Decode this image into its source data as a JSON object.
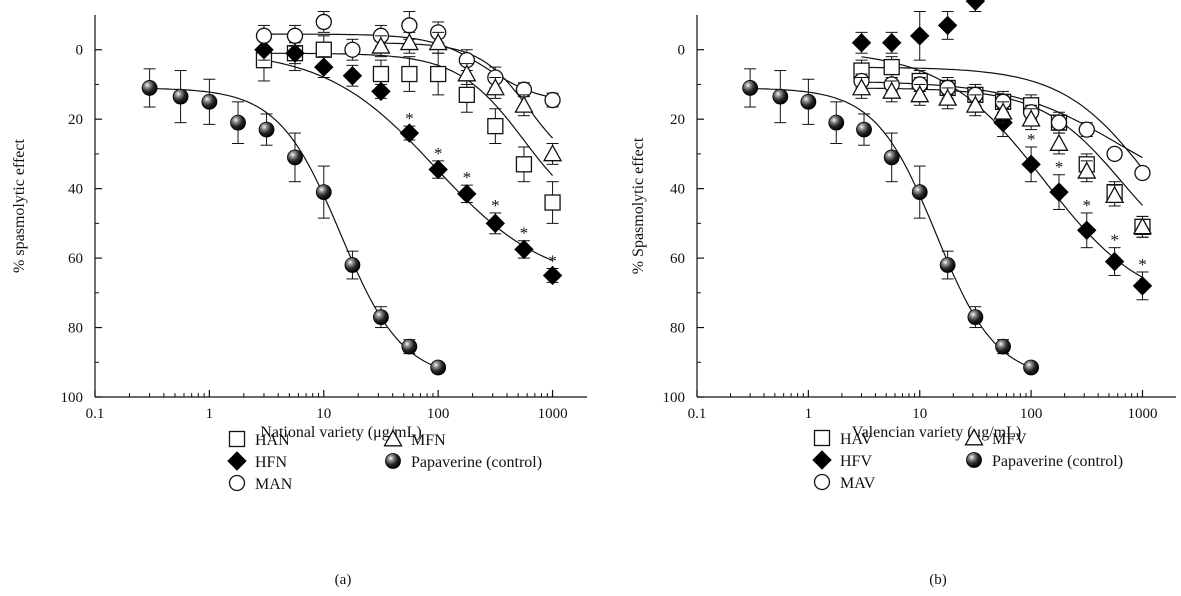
{
  "chart_data": [
    {
      "type": "scatter",
      "panel_label": "(a)",
      "xlabel": "National variety (μg/mL)",
      "ylabel": "% spasmolytic effect",
      "x_scale": "log",
      "xlim": [
        0.1,
        2000
      ],
      "ylim": [
        100,
        -10
      ],
      "y_inverted": true,
      "xticks": [
        0.1,
        1,
        10,
        100,
        1000
      ],
      "xtick_labels": [
        "0.1",
        "1",
        "10",
        "100",
        "1000"
      ],
      "yticks": [
        0,
        20,
        40,
        60,
        80,
        100
      ],
      "ytick_labels": [
        "0",
        "20",
        "40",
        "60",
        "80",
        "100"
      ],
      "grid": false,
      "legend_position": "bottom",
      "series": [
        {
          "name": "HAN",
          "marker": "square-open",
          "x": [
            3,
            5.6,
            10,
            31.6,
            56,
            100,
            178,
            316,
            562,
            1000
          ],
          "y": [
            3,
            1,
            0,
            7,
            7,
            7,
            13,
            22,
            33,
            44
          ],
          "err": [
            6,
            5,
            4,
            4,
            5,
            6,
            5,
            5,
            5,
            6
          ],
          "fit": {
            "bottom": 1,
            "top": 51,
            "ec50": 560,
            "hill": 1.5
          }
        },
        {
          "name": "HFN",
          "marker": "diamond-filled",
          "x": [
            3,
            5.6,
            10,
            17.8,
            31.6,
            56,
            100,
            178,
            316,
            562,
            1000
          ],
          "y": [
            0,
            1,
            5,
            7.5,
            12,
            24,
            34.5,
            41.5,
            50,
            57.5,
            65
          ],
          "err": [
            3,
            3,
            3,
            3,
            2,
            2,
            2.5,
            2.5,
            3,
            2.5,
            2
          ],
          "significant": [
            false,
            false,
            false,
            false,
            false,
            true,
            true,
            true,
            true,
            true,
            true
          ],
          "fit": {
            "bottom": 0,
            "top": 68,
            "ec50": 95,
            "hill": 0.9
          }
        },
        {
          "name": "MAN",
          "marker": "circle-open",
          "x": [
            3,
            5.6,
            10,
            17.8,
            31.6,
            56,
            100,
            178,
            316,
            562,
            1000
          ],
          "y": [
            -4,
            -4,
            -8,
            0,
            -4,
            -7,
            -5,
            3,
            8,
            11.5,
            14.5
          ],
          "err": [
            3,
            3,
            3,
            3,
            3,
            4,
            3,
            3,
            3,
            2,
            2
          ],
          "fit": {
            "bottom": -4.5,
            "top": 15.5,
            "ec50": 270,
            "hill": 1.8
          }
        },
        {
          "name": "MFN",
          "marker": "triangle-open",
          "x": [
            31.6,
            56,
            100,
            178,
            316,
            562,
            1000
          ],
          "y": [
            -1,
            -2,
            -2,
            7,
            11,
            16,
            30
          ],
          "err": [
            3,
            3,
            3,
            3,
            3,
            3,
            3
          ],
          "fit": {
            "bottom": -2,
            "top": 36,
            "ec50": 620,
            "hill": 2.0
          }
        },
        {
          "name": "Papaverine (control)",
          "marker": "sphere-filled",
          "x": [
            0.3,
            0.56,
            1,
            1.78,
            3.16,
            5.6,
            10,
            17.8,
            31.6,
            56,
            100
          ],
          "y": [
            11,
            13.5,
            15,
            21,
            23,
            31,
            41,
            62,
            77,
            85.5,
            91.5
          ],
          "err": [
            5.5,
            7.5,
            6.5,
            6,
            4.5,
            7,
            7.5,
            4,
            3,
            2,
            1
          ],
          "fit": {
            "bottom": 11,
            "top": 95,
            "ec50": 14,
            "hill": 1.6
          }
        }
      ]
    },
    {
      "type": "scatter",
      "panel_label": "(b)",
      "xlabel": "Valencian variety (μg/mL)",
      "ylabel": "% Spasmolytic effect",
      "x_scale": "log",
      "xlim": [
        0.1,
        2000
      ],
      "ylim": [
        100,
        -10
      ],
      "y_inverted": true,
      "xticks": [
        0.1,
        1,
        10,
        100,
        1000
      ],
      "xtick_labels": [
        "0.1",
        "1",
        "10",
        "100",
        "1000"
      ],
      "yticks": [
        0,
        20,
        40,
        60,
        80,
        100
      ],
      "ytick_labels": [
        "0",
        "20",
        "40",
        "60",
        "80",
        "100"
      ],
      "grid": false,
      "legend_position": "bottom",
      "series": [
        {
          "name": "HAV",
          "marker": "square-open",
          "x": [
            3,
            5.6,
            10,
            17.8,
            31.6,
            56,
            100,
            178,
            316,
            562,
            1000
          ],
          "y": [
            6,
            5,
            9,
            11,
            13,
            15,
            16,
            21,
            33,
            41,
            51
          ],
          "err": [
            3,
            3,
            3,
            3,
            3,
            3,
            3,
            3,
            3,
            3,
            3
          ],
          "fit": {
            "bottom": 5,
            "top": 70,
            "ec50": 1200,
            "hill": 1.1
          }
        },
        {
          "name": "HFV",
          "marker": "diamond-filled",
          "x": [
            3,
            5.6,
            10,
            17.8,
            31.6,
            56,
            100,
            178,
            316,
            562,
            1000
          ],
          "y": [
            -2,
            -2,
            -4,
            -7,
            -14,
            21,
            33,
            41,
            52,
            61,
            68
          ],
          "err": [
            3,
            3,
            7,
            4,
            3,
            4,
            5,
            5,
            5,
            4,
            4
          ],
          "significant": [
            false,
            false,
            false,
            false,
            false,
            false,
            true,
            true,
            true,
            true,
            true
          ],
          "fit": {
            "bottom": 0,
            "top": 75,
            "ec50": 130,
            "hill": 0.95
          }
        },
        {
          "name": "MAV",
          "marker": "circle-open",
          "x": [
            3,
            5.6,
            10,
            17.8,
            31.6,
            56,
            100,
            178,
            316,
            562,
            1000
          ],
          "y": [
            9,
            10,
            10,
            11,
            13,
            15,
            18,
            21,
            23,
            30,
            35.5
          ],
          "err": [
            2,
            2,
            2,
            2,
            2,
            2,
            2,
            2,
            2,
            1.5,
            1.5
          ],
          "fit": {
            "bottom": 9,
            "top": 45,
            "ec50": 600,
            "hill": 0.9
          }
        },
        {
          "name": "MFV",
          "marker": "triangle-open",
          "x": [
            3,
            5.6,
            10,
            17.8,
            31.6,
            56,
            100,
            178,
            316,
            562,
            1000
          ],
          "y": [
            11,
            12,
            13,
            14,
            16,
            18,
            20,
            27,
            35,
            42,
            51
          ],
          "err": [
            3,
            3,
            3,
            3,
            3,
            3,
            3,
            3,
            3,
            3,
            3
          ],
          "fit": {
            "bottom": 11,
            "top": 65,
            "ec50": 650,
            "hill": 1.2
          }
        },
        {
          "name": "Papaverine (control)",
          "marker": "sphere-filled",
          "x": [
            0.3,
            0.56,
            1,
            1.78,
            3.16,
            5.6,
            10,
            17.8,
            31.6,
            56,
            100
          ],
          "y": [
            11,
            13.5,
            15,
            21,
            23,
            31,
            41,
            62,
            77,
            85.5,
            91.5
          ],
          "err": [
            5.5,
            7.5,
            6.5,
            6,
            4.5,
            7,
            7.5,
            4,
            3,
            2,
            1
          ],
          "fit": {
            "bottom": 11,
            "top": 95,
            "ec50": 14,
            "hill": 1.6
          }
        }
      ]
    }
  ]
}
